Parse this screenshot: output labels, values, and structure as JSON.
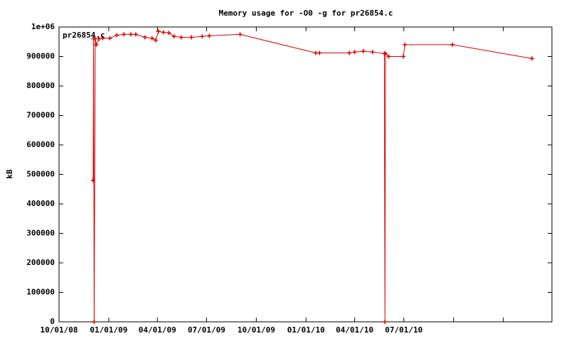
{
  "chart_data": {
    "type": "line",
    "title": "Memory usage for -O0 -g for pr26854.c",
    "y_label": "kB",
    "x": [
      "2008-12-03",
      "2008-12-04",
      "2008-12-05",
      "2008-12-07",
      "2008-12-09",
      "2008-12-14",
      "2008-12-21",
      "2009-01-03",
      "2009-01-16",
      "2009-01-29",
      "2009-02-11",
      "2009-02-20",
      "2009-03-09",
      "2009-03-22",
      "2009-03-29",
      "2009-04-03",
      "2009-04-12",
      "2009-04-22",
      "2009-05-02",
      "2009-05-15",
      "2009-06-03",
      "2009-06-23",
      "2009-07-06",
      "2009-09-01",
      "2010-01-19",
      "2010-01-26",
      "2010-03-22",
      "2010-04-01",
      "2010-04-17",
      "2010-05-04",
      "2010-05-26",
      "2010-05-27",
      "2010-05-28",
      "2010-06-03",
      "2010-06-30",
      "2010-07-03",
      "2010-09-29",
      "2011-02-23"
    ],
    "series": [
      {
        "name": "pr26854.c",
        "color": "#dd0000",
        "values": [
          480000,
          960000,
          0,
          960000,
          940000,
          960000,
          962000,
          962000,
          972000,
          975000,
          975000,
          975000,
          965000,
          962000,
          955000,
          985000,
          982000,
          980000,
          968000,
          965000,
          965000,
          968000,
          970000,
          975000,
          912000,
          912000,
          912000,
          915000,
          918000,
          915000,
          910000,
          0,
          910000,
          900000,
          900000,
          940000,
          940000,
          893000
        ]
      }
    ],
    "xlim": [
      "2008-10-01",
      "2011-04-01"
    ],
    "xticks": [
      {
        "value": "2008-10-01",
        "label": "10/01/08"
      },
      {
        "value": "2009-01-01",
        "label": "01/01/09"
      },
      {
        "value": "2009-04-01",
        "label": "04/01/09"
      },
      {
        "value": "2009-07-01",
        "label": "07/01/09"
      },
      {
        "value": "2009-10-01",
        "label": "10/01/09"
      },
      {
        "value": "2010-01-01",
        "label": "01/01/10"
      },
      {
        "value": "2010-04-01",
        "label": "04/01/10"
      },
      {
        "value": "2010-07-01",
        "label": "07/01/10"
      },
      {
        "value": "2010-10-01",
        "label": null
      },
      {
        "value": "2011-01-01",
        "label": null
      },
      {
        "value": "2011-04-01",
        "label": null
      }
    ],
    "ylim": [
      0,
      1000000
    ],
    "yticks": [
      0,
      100000,
      200000,
      300000,
      400000,
      500000,
      600000,
      700000,
      800000,
      900000,
      {
        "value": 1000000,
        "label": "1e+06"
      }
    ],
    "legend": "top-left"
  }
}
